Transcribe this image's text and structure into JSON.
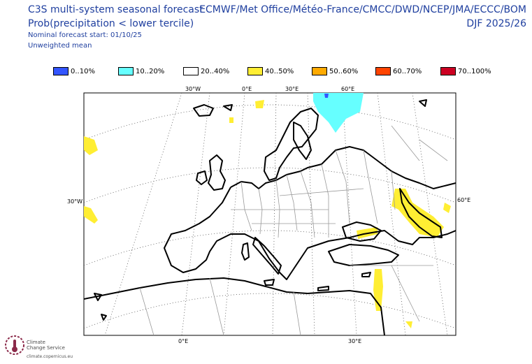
{
  "header": {
    "title": "C3S multi-system seasonal forecast",
    "subtitle": "Prob(precipitation < lower tercile)",
    "start_note": "Nominal forecast start: 01/10/25",
    "mean_note": "Unweighted mean",
    "systems": "ECMWF/Met Office/Météo-France/CMCC/DWD/NCEP/JMA/ECCC/BOM",
    "season": "DJF 2025/26"
  },
  "legend": [
    {
      "label": "0..10%",
      "color": "#3355ff"
    },
    {
      "label": "10..20%",
      "color": "#66ffff"
    },
    {
      "label": "20..40%",
      "color": "#ffffff"
    },
    {
      "label": "40..50%",
      "color": "#ffee33"
    },
    {
      "label": "50..60%",
      "color": "#ffaa00"
    },
    {
      "label": "60..70%",
      "color": "#ff4400"
    },
    {
      "label": "70..100%",
      "color": "#cc0022"
    }
  ],
  "map": {
    "region": "Europe",
    "ticks": {
      "top_30w": "30°W",
      "top_0e": "0°E",
      "top_30e": "30°E",
      "top_60e": "60°E",
      "left_30w": "30°W",
      "right_60e": "60°E",
      "bottom_0e": "0°E",
      "bottom_30e": "30°E"
    }
  },
  "logo": {
    "line1": "Climate",
    "line2": "Change Service",
    "url": "climate.copernicus.eu"
  }
}
